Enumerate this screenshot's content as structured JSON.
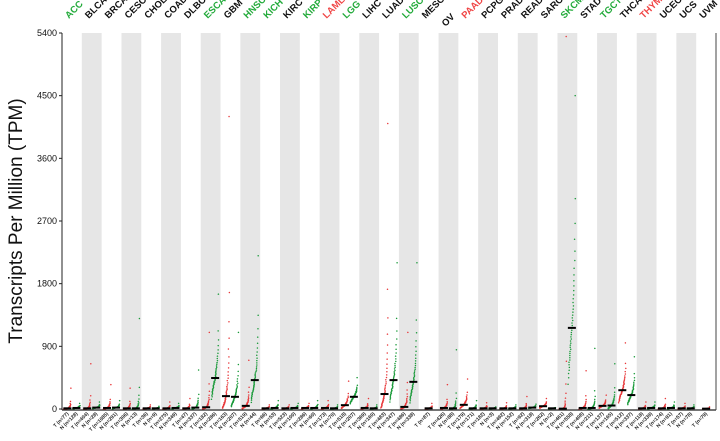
{
  "chart_data": {
    "type": "scatter",
    "title": "",
    "xlabel": "",
    "ylabel": "Transcripts Per Million (TPM)",
    "ylim": [
      0,
      5400
    ],
    "yticks": [
      0,
      900,
      1800,
      2700,
      3600,
      4500,
      5400
    ],
    "grid": false,
    "legend": "none",
    "groups": [
      {
        "name": "ACC",
        "label_color": "green",
        "tumor": {
          "label": "T (n=77)",
          "median": 10,
          "max": 300
        },
        "normal": {
          "label": "N (n=128)",
          "median": 15,
          "max": 80
        }
      },
      {
        "name": "BLCA",
        "label_color": "black",
        "tumor": {
          "label": "T (n=404)",
          "median": 10,
          "max": 650
        },
        "normal": {
          "label": "N (n=28)",
          "median": 20,
          "max": 100
        }
      },
      {
        "name": "BRCA",
        "label_color": "black",
        "tumor": {
          "label": "T (n=1085)",
          "median": 15,
          "max": 350
        },
        "normal": {
          "label": "N (n=291)",
          "median": 20,
          "max": 120
        }
      },
      {
        "name": "CESC",
        "label_color": "black",
        "tumor": {
          "label": "T (n=306)",
          "median": 10,
          "max": 300
        },
        "normal": {
          "label": "N (n=13)",
          "median": 10,
          "max": 1300
        }
      },
      {
        "name": "CHOL",
        "label_color": "black",
        "tumor": {
          "label": "T (n=36)",
          "median": 10,
          "max": 60
        },
        "normal": {
          "label": "N (n=9)",
          "median": 10,
          "max": 40
        }
      },
      {
        "name": "COAD",
        "label_color": "black",
        "tumor": {
          "label": "T (n=275)",
          "median": 10,
          "max": 100
        },
        "normal": {
          "label": "N (n=349)",
          "median": 15,
          "max": 80
        }
      },
      {
        "name": "DLBC",
        "label_color": "black",
        "tumor": {
          "label": "T (n=47)",
          "median": 10,
          "max": 150
        },
        "normal": {
          "label": "N (n=337)",
          "median": 20,
          "max": 560
        }
      },
      {
        "name": "ESCA",
        "label_color": "green",
        "tumor": {
          "label": "T (n=182)",
          "median": 25,
          "max": 1100
        },
        "normal": {
          "label": "N (n=286)",
          "median": 445,
          "max": 1650
        }
      },
      {
        "name": "GBM",
        "label_color": "black",
        "tumor": {
          "label": "T (n=163)",
          "median": 185,
          "max": 4200
        },
        "normal": {
          "label": "N (n=207)",
          "median": 175,
          "max": 1100
        }
      },
      {
        "name": "HNSC",
        "label_color": "green",
        "tumor": {
          "label": "T (n=519)",
          "median": 45,
          "max": 700
        },
        "normal": {
          "label": "N (n=44)",
          "median": 415,
          "max": 2200
        }
      },
      {
        "name": "KICH",
        "label_color": "green",
        "tumor": {
          "label": "T (n=66)",
          "median": 10,
          "max": 60
        },
        "normal": {
          "label": "N (n=53)",
          "median": 15,
          "max": 120
        }
      },
      {
        "name": "KIRC",
        "label_color": "black",
        "tumor": {
          "label": "T (n=523)",
          "median": 10,
          "max": 60
        },
        "normal": {
          "label": "N (n=100)",
          "median": 15,
          "max": 80
        }
      },
      {
        "name": "KIRP",
        "label_color": "green",
        "tumor": {
          "label": "T (n=286)",
          "median": 15,
          "max": 80
        },
        "normal": {
          "label": "N (n=60)",
          "median": 15,
          "max": 120
        }
      },
      {
        "name": "LAML",
        "label_color": "red",
        "tumor": {
          "label": "T (n=173)",
          "median": 15,
          "max": 120
        },
        "normal": {
          "label": "N (n=70)",
          "median": 10,
          "max": 60
        }
      },
      {
        "name": "LGG",
        "label_color": "green",
        "tumor": {
          "label": "T (n=518)",
          "median": 55,
          "max": 400
        },
        "normal": {
          "label": "N (n=207)",
          "median": 175,
          "max": 450
        }
      },
      {
        "name": "LIHC",
        "label_color": "black",
        "tumor": {
          "label": "T (n=369)",
          "median": 15,
          "max": 150
        },
        "normal": {
          "label": "N (n=160)",
          "median": 10,
          "max": 60
        }
      },
      {
        "name": "LUAD",
        "label_color": "black",
        "tumor": {
          "label": "T (n=483)",
          "median": 215,
          "max": 4100
        },
        "normal": {
          "label": "N (n=347)",
          "median": 415,
          "max": 2100
        }
      },
      {
        "name": "LUSC",
        "label_color": "green",
        "tumor": {
          "label": "T (n=486)",
          "median": 30,
          "max": 1100
        },
        "normal": {
          "label": "N (n=338)",
          "median": 390,
          "max": 2100
        }
      },
      {
        "name": "MESO",
        "label_color": "black",
        "tumor": {
          "label": "T (n=87)",
          "median": 10,
          "max": 80
        }
      },
      {
        "name": "OV",
        "label_color": "black",
        "tumor": {
          "label": "T (n=426)",
          "median": 15,
          "max": 350
        },
        "normal": {
          "label": "N (n=88)",
          "median": 10,
          "max": 850
        }
      },
      {
        "name": "PAAD",
        "label_color": "red",
        "tumor": {
          "label": "T (n=179)",
          "median": 60,
          "max": 430
        },
        "normal": {
          "label": "N (n=171)",
          "median": 10,
          "max": 120
        }
      },
      {
        "name": "PCPG",
        "label_color": "black",
        "tumor": {
          "label": "T (n=182)",
          "median": 10,
          "max": 90
        },
        "normal": {
          "label": "N (n=3)",
          "median": 10,
          "max": 30
        }
      },
      {
        "name": "PRAD",
        "label_color": "black",
        "tumor": {
          "label": "T (n=492)",
          "median": 10,
          "max": 90
        },
        "normal": {
          "label": "N (n=152)",
          "median": 10,
          "max": 60
        }
      },
      {
        "name": "READ",
        "label_color": "black",
        "tumor": {
          "label": "T (n=92)",
          "median": 10,
          "max": 180
        },
        "normal": {
          "label": "N (n=318)",
          "median": 20,
          "max": 70
        }
      },
      {
        "name": "SARC",
        "label_color": "black",
        "tumor": {
          "label": "T (n=262)",
          "median": 40,
          "max": 150
        },
        "normal": {
          "label": "N (n=2)",
          "median": 10,
          "max": 20
        }
      },
      {
        "name": "SKCM",
        "label_color": "green",
        "tumor": {
          "label": "T (n=461)",
          "median": 5,
          "max": 5350
        },
        "normal": {
          "label": "N (n=558)",
          "median": 1165,
          "max": 4500
        }
      },
      {
        "name": "STAD",
        "label_color": "black",
        "tumor": {
          "label": "T (n=408)",
          "median": 15,
          "max": 550
        },
        "normal": {
          "label": "N (n=211)",
          "median": 15,
          "max": 870
        }
      },
      {
        "name": "TGCT",
        "label_color": "green",
        "tumor": {
          "label": "T (n=137)",
          "median": 45,
          "max": 200
        },
        "normal": {
          "label": "N (n=165)",
          "median": 50,
          "max": 650
        }
      },
      {
        "name": "THCA",
        "label_color": "black",
        "tumor": {
          "label": "T (n=512)",
          "median": 270,
          "max": 950
        },
        "normal": {
          "label": "N (n=337)",
          "median": 200,
          "max": 750
        }
      },
      {
        "name": "THYM",
        "label_color": "red",
        "tumor": {
          "label": "T (n=118)",
          "median": 10,
          "max": 100
        },
        "normal": {
          "label": "N (n=339)",
          "median": 15,
          "max": 100
        }
      },
      {
        "name": "UCEC",
        "label_color": "black",
        "tumor": {
          "label": "T (n=174)",
          "median": 10,
          "max": 150
        },
        "normal": {
          "label": "N (n=91)",
          "median": 15,
          "max": 100
        }
      },
      {
        "name": "UCS",
        "label_color": "black",
        "tumor": {
          "label": "T (n=57)",
          "median": 10,
          "max": 80
        },
        "normal": {
          "label": "N (n=78)",
          "median": 10,
          "max": 60
        }
      },
      {
        "name": "UVM",
        "label_color": "black",
        "tumor": {
          "label": "T (n=79)",
          "median": 5,
          "max": 30
        }
      }
    ]
  },
  "colors": {
    "tumor": "#e8383a",
    "normal": "#1a9a3a",
    "median": "#000000",
    "band": "#e6e6e6",
    "label_green": "#22aa3a",
    "label_red": "#f04545",
    "label_black": "#111111"
  }
}
